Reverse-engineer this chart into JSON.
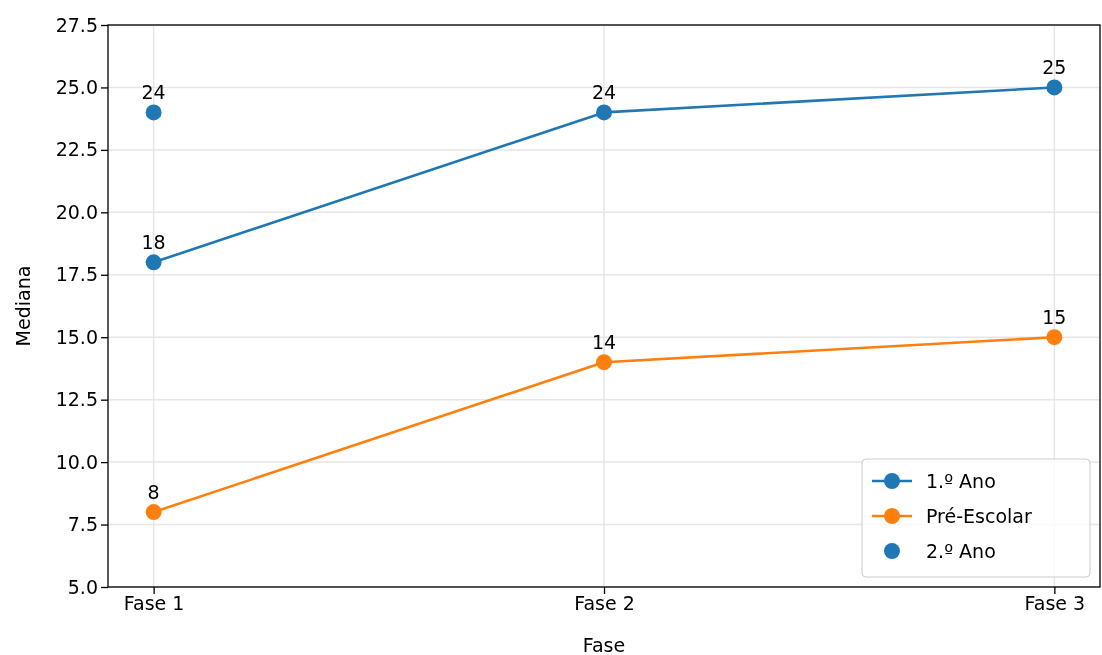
{
  "chart_data": {
    "type": "line",
    "xlabel": "Fase",
    "ylabel": "Mediana",
    "categories": [
      "Fase 1",
      "Fase 2",
      "Fase 3"
    ],
    "series": [
      {
        "name": "1.º Ano",
        "color": "#1f77b4",
        "values": [
          18,
          24,
          25
        ]
      },
      {
        "name": "Pré-Escolar",
        "color": "#ff7f0e",
        "values": [
          8,
          14,
          15
        ]
      },
      {
        "name": "2.º Ano",
        "type": "scatter",
        "color": "#1f77b4",
        "values": [
          24,
          null,
          null
        ]
      }
    ],
    "ylim": [
      5,
      27.5
    ],
    "yticks": [
      {
        "value": 5,
        "label": "5.0"
      },
      {
        "value": 7.5,
        "label": "7.5"
      },
      {
        "value": 10,
        "label": "10.0"
      },
      {
        "value": 12.5,
        "label": "12.5"
      },
      {
        "value": 15,
        "label": "15.0"
      },
      {
        "value": 17.5,
        "label": "17.5"
      },
      {
        "value": 20,
        "label": "20.0"
      },
      {
        "value": 22.5,
        "label": "22.5"
      },
      {
        "value": 25,
        "label": "25.0"
      },
      {
        "value": 27.5,
        "label": "27.5"
      }
    ],
    "grid": true,
    "legend": "bottom right",
    "marker": "circle",
    "line_style": "solid",
    "data_labels": true
  }
}
